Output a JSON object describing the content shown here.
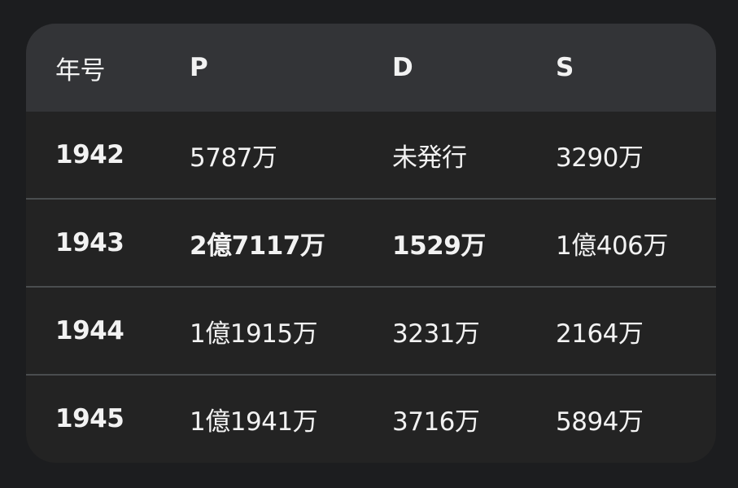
{
  "table": {
    "headers": [
      "年号",
      "P",
      "D",
      "S"
    ],
    "rows": [
      {
        "year": "1942",
        "p": "5787万",
        "d": "未発行",
        "s": "3290万"
      },
      {
        "year": "1943",
        "p": "2億7117万",
        "d": "1529万",
        "s": "1億406万"
      },
      {
        "year": "1944",
        "p": "1億1915万",
        "d": "3231万",
        "s": "2164万"
      },
      {
        "year": "1945",
        "p": "1億1941万",
        "d": "3716万",
        "s": "5894万"
      }
    ]
  }
}
